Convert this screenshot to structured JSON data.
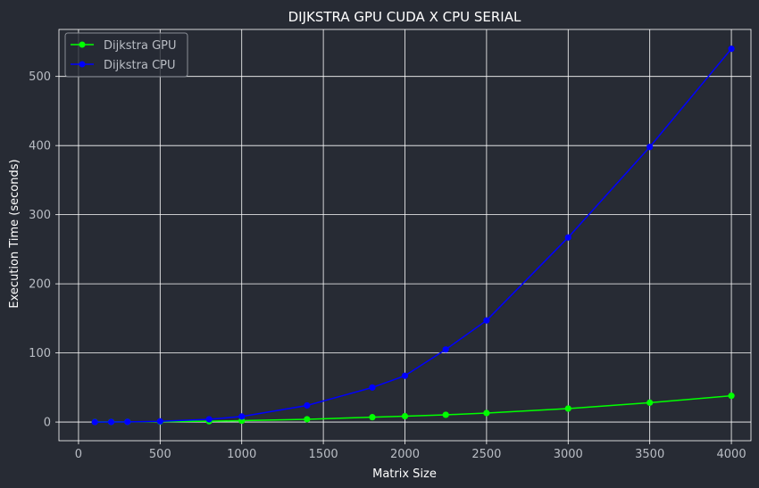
{
  "chart_data": {
    "type": "line",
    "title": "DIJKSTRA GPU CUDA X CPU SERIAL",
    "xlabel": "Matrix Size",
    "ylabel": "Execution Time (seconds)",
    "xlim": [
      -120,
      4120
    ],
    "ylim": [
      -27,
      568
    ],
    "xticks": [
      0,
      500,
      1000,
      1500,
      2000,
      2500,
      3000,
      3500,
      4000
    ],
    "yticks": [
      0,
      100,
      200,
      300,
      400,
      500
    ],
    "grid": true,
    "legend_position": "top-left",
    "series": [
      {
        "name": "Dijkstra GPU",
        "color": "#00ff00",
        "x": [
          100,
          200,
          300,
          500,
          800,
          1000,
          1400,
          1800,
          2000,
          2250,
          2500,
          3000,
          3500,
          4000
        ],
        "y": [
          0.1,
          0.2,
          0.3,
          0.6,
          1.2,
          2.0,
          4.0,
          7.0,
          8.5,
          10.5,
          13.0,
          19.5,
          28.0,
          38.0
        ]
      },
      {
        "name": "Dijkstra CPU",
        "color": "#0000ff",
        "x": [
          100,
          200,
          300,
          500,
          800,
          1000,
          1400,
          1800,
          2000,
          2250,
          2500,
          3000,
          3500,
          4000
        ],
        "y": [
          0.0,
          0.1,
          0.3,
          1.0,
          4.0,
          8.0,
          24.0,
          50.0,
          67.0,
          105.0,
          147.0,
          267.0,
          398.0,
          540.0
        ]
      }
    ]
  },
  "colors": {
    "background": "#272b34",
    "grid": "#ffffff",
    "text": "#ffffff",
    "tick_text": "#b9bdc4"
  }
}
